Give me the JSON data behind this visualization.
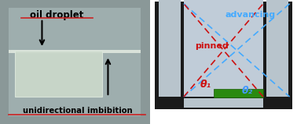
{
  "left_bg": "#8a9898",
  "left_inner_bg": "#aab8aa",
  "droplet_face": "#c8d8c8",
  "droplet_edge": "#e8eee8",
  "white_band": "#dde8dd",
  "label_oil": "oil droplet",
  "label_imb": "unidirectional imbibition",
  "label_underline": "#cc2222",
  "right_bg_outer": "#ffffff",
  "right_inner_bg": "#c0ccd8",
  "pillar_outer": "#1a1a1a",
  "pillar_inner": "#b8c4cc",
  "floor_inner": "#b8c4cc",
  "green_color": "#2a8a10",
  "green_edge": "#1a5a08",
  "advancing_color": "#44aaff",
  "pinned_color": "#cc1111",
  "theta1_color": "#cc1111",
  "theta2_color": "#4499ff",
  "label_advancing": "advancing",
  "label_pinned": "pinned",
  "label_theta1": "θ₁",
  "label_theta2": "θ₂"
}
